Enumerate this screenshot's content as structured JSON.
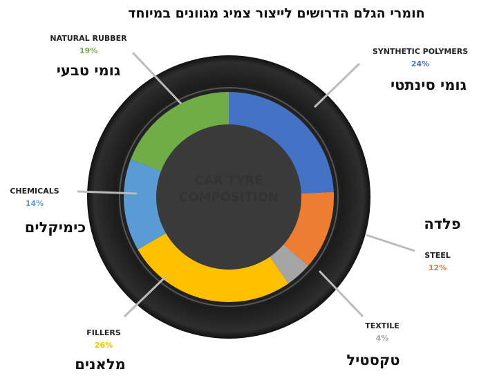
{
  "chart_data": {
    "type": "pie",
    "donut": true,
    "title": "חומרי הגלם הדרושים לייצור צמיג מגוונים במיוחד",
    "center_label": [
      "CAR TYRE",
      "COMPOSITION"
    ],
    "categories": [
      "SYNTHETIC POLYMERS",
      "STEEL",
      "TEXTILE",
      "FILLERS",
      "CHEMICALS",
      "NATURAL RUBBER"
    ],
    "translations": [
      "גומי סינתטי",
      "פלדה",
      "טקסטיל",
      "מלאנים",
      "כימיקלים",
      "גומי טבעי"
    ],
    "values": [
      24,
      12,
      4,
      26,
      14,
      19
    ],
    "value_labels": [
      "24%",
      "12%",
      "4%",
      "26%",
      "14%",
      "19%"
    ],
    "colors": [
      "#4472c4",
      "#ed7d31",
      "#a5a5a5",
      "#ffc000",
      "#5b9bd5",
      "#70ad47"
    ]
  }
}
